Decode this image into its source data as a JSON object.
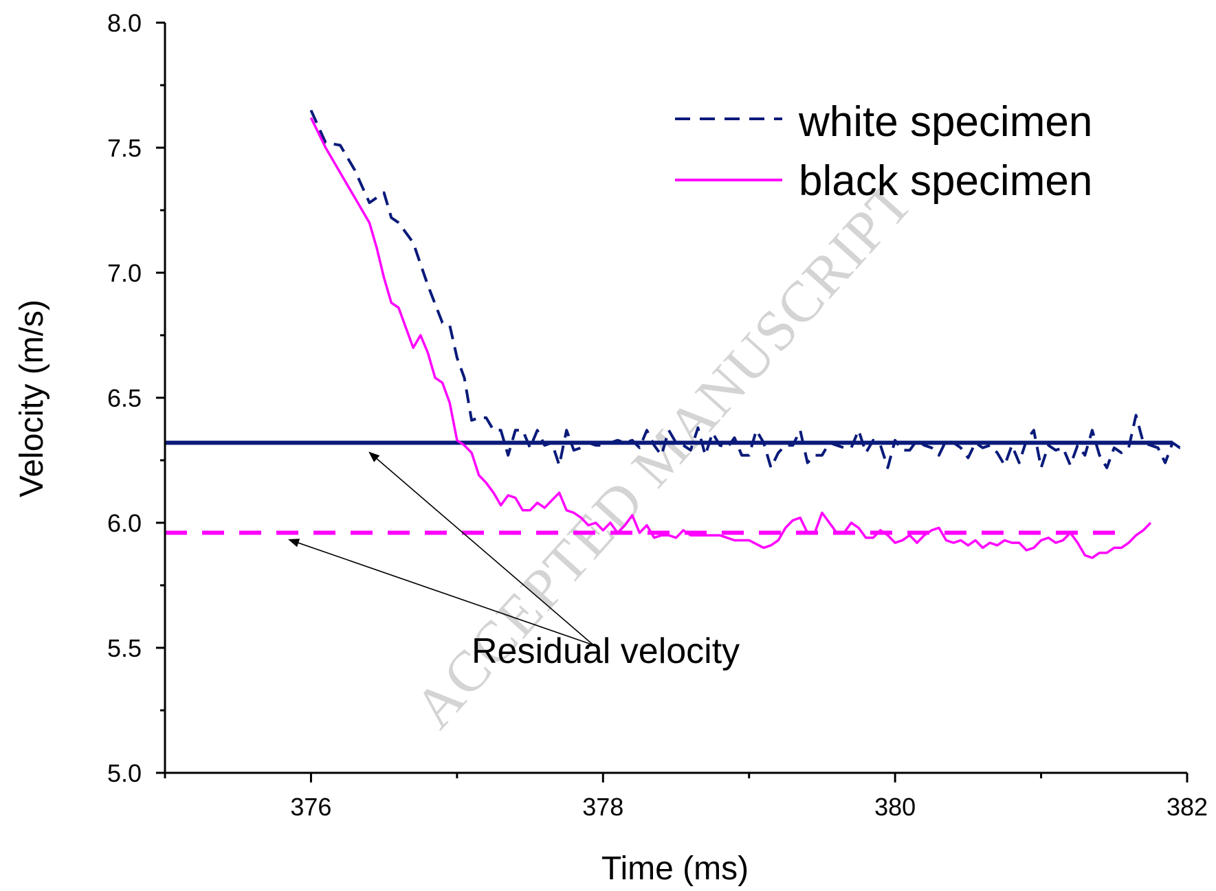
{
  "chart_data": {
    "type": "line",
    "title": "",
    "xlabel": "Time (ms)",
    "ylabel": "Velocity (m/s)",
    "xlim": [
      375,
      382
    ],
    "ylim": [
      5.0,
      8.0
    ],
    "x_ticks": [
      376,
      378,
      380,
      382
    ],
    "x_tick_labels": [
      "376",
      "378",
      "380",
      "382"
    ],
    "y_ticks": [
      5.0,
      5.5,
      6.0,
      6.5,
      7.0,
      7.5,
      8.0
    ],
    "y_tick_labels": [
      "5.0",
      "5.5",
      "6.0",
      "6.5",
      "7.0",
      "7.5",
      "8.0"
    ],
    "grid": false,
    "legend_position": "top-right",
    "series": [
      {
        "name": "white specimen",
        "color": "#0a1a7a",
        "style": "dashed",
        "x": [
          376.0,
          376.1,
          376.2,
          376.3,
          376.4,
          376.45,
          376.5,
          376.55,
          376.6,
          376.7,
          376.8,
          376.9,
          376.95,
          377.0,
          377.05,
          377.1,
          377.15,
          377.2,
          377.25,
          377.3,
          377.35,
          377.4,
          377.45,
          377.5,
          377.55,
          377.6,
          377.65,
          377.7,
          377.75,
          377.8,
          377.85,
          377.9,
          377.95,
          378.0,
          378.05,
          378.1,
          378.15,
          378.2,
          378.25,
          378.3,
          378.35,
          378.4,
          378.45,
          378.5,
          378.55,
          378.6,
          378.65,
          378.7,
          378.75,
          378.8,
          378.85,
          378.9,
          378.95,
          379.0,
          379.05,
          379.1,
          379.15,
          379.2,
          379.25,
          379.3,
          379.35,
          379.4,
          379.45,
          379.5,
          379.55,
          379.6,
          379.65,
          379.7,
          379.75,
          379.8,
          379.85,
          379.9,
          379.95,
          380.0,
          380.05,
          380.1,
          380.15,
          380.2,
          380.25,
          380.3,
          380.35,
          380.4,
          380.45,
          380.5,
          380.55,
          380.6,
          380.65,
          380.7,
          380.75,
          380.8,
          380.85,
          380.9,
          380.95,
          381.0,
          381.05,
          381.1,
          381.15,
          381.2,
          381.25,
          381.3,
          381.35,
          381.4,
          381.45,
          381.5,
          381.55,
          381.6,
          381.65,
          381.7,
          381.75,
          381.8,
          381.85,
          381.9,
          381.95,
          382.0
        ],
        "values": [
          7.65,
          7.52,
          7.51,
          7.41,
          7.28,
          7.3,
          7.32,
          7.22,
          7.2,
          7.12,
          6.95,
          6.8,
          6.79,
          6.66,
          6.58,
          6.41,
          6.42,
          6.42,
          6.37,
          6.37,
          6.27,
          6.37,
          6.37,
          6.3,
          6.37,
          6.31,
          6.32,
          6.23,
          6.37,
          6.29,
          6.3,
          6.32,
          6.31,
          6.31,
          6.32,
          6.33,
          6.32,
          6.33,
          6.3,
          6.37,
          6.31,
          6.27,
          6.37,
          6.32,
          6.31,
          6.29,
          6.38,
          6.27,
          6.36,
          6.31,
          6.3,
          6.34,
          6.27,
          6.27,
          6.37,
          6.32,
          6.22,
          6.28,
          6.31,
          6.31,
          6.37,
          6.24,
          6.27,
          6.27,
          6.32,
          6.31,
          6.3,
          6.3,
          6.37,
          6.28,
          6.33,
          6.31,
          6.22,
          6.33,
          6.29,
          6.29,
          6.33,
          6.31,
          6.3,
          6.27,
          6.33,
          6.32,
          6.3,
          6.26,
          6.32,
          6.3,
          6.31,
          6.28,
          6.23,
          6.31,
          6.24,
          6.33,
          6.37,
          6.22,
          6.31,
          6.29,
          6.3,
          6.23,
          6.31,
          6.27,
          6.37,
          6.27,
          6.22,
          6.3,
          6.28,
          6.3,
          6.43,
          6.32,
          6.31,
          6.3,
          6.24,
          6.32,
          6.3,
          6.31
        ]
      },
      {
        "name": "black specimen",
        "color": "#ff00ff",
        "style": "solid",
        "x": [
          376.0,
          376.1,
          376.2,
          376.3,
          376.4,
          376.45,
          376.5,
          376.55,
          376.6,
          376.65,
          376.7,
          376.75,
          376.8,
          376.85,
          376.9,
          376.95,
          377.0,
          377.05,
          377.1,
          377.15,
          377.2,
          377.25,
          377.3,
          377.35,
          377.4,
          377.45,
          377.5,
          377.55,
          377.6,
          377.65,
          377.7,
          377.75,
          377.8,
          377.85,
          377.9,
          377.95,
          378.0,
          378.05,
          378.1,
          378.15,
          378.2,
          378.25,
          378.3,
          378.35,
          378.4,
          378.45,
          378.5,
          378.55,
          378.6,
          378.65,
          378.7,
          378.75,
          378.8,
          378.9,
          379.0,
          379.1,
          379.15,
          379.2,
          379.25,
          379.3,
          379.35,
          379.4,
          379.45,
          379.5,
          379.55,
          379.6,
          379.65,
          379.7,
          379.75,
          379.8,
          379.85,
          379.9,
          379.95,
          380.0,
          380.05,
          380.1,
          380.15,
          380.2,
          380.25,
          380.3,
          380.35,
          380.4,
          380.45,
          380.5,
          380.55,
          380.6,
          380.65,
          380.7,
          380.75,
          380.8,
          380.85,
          380.9,
          380.95,
          381.0,
          381.05,
          381.1,
          381.15,
          381.2,
          381.25,
          381.3,
          381.35,
          381.4,
          381.45,
          381.5,
          381.55,
          381.6,
          381.65,
          381.7,
          381.75
        ],
        "values": [
          7.62,
          7.5,
          7.4,
          7.3,
          7.2,
          7.1,
          6.98,
          6.88,
          6.86,
          6.78,
          6.7,
          6.75,
          6.68,
          6.58,
          6.56,
          6.48,
          6.33,
          6.31,
          6.28,
          6.19,
          6.16,
          6.12,
          6.07,
          6.11,
          6.1,
          6.05,
          6.05,
          6.08,
          6.06,
          6.09,
          6.12,
          6.05,
          6.04,
          6.02,
          5.99,
          6.0,
          5.97,
          6.0,
          5.96,
          5.99,
          6.03,
          5.96,
          5.99,
          5.94,
          5.95,
          5.95,
          5.94,
          5.97,
          5.95,
          5.95,
          5.95,
          5.95,
          5.95,
          5.93,
          5.93,
          5.9,
          5.91,
          5.93,
          5.98,
          6.01,
          6.02,
          5.96,
          5.96,
          6.04,
          6.0,
          5.96,
          5.96,
          6.0,
          5.98,
          5.94,
          5.94,
          5.97,
          5.95,
          5.92,
          5.93,
          5.95,
          5.92,
          5.95,
          5.97,
          5.98,
          5.93,
          5.92,
          5.93,
          5.91,
          5.93,
          5.9,
          5.92,
          5.91,
          5.93,
          5.92,
          5.92,
          5.89,
          5.9,
          5.93,
          5.94,
          5.92,
          5.93,
          5.96,
          5.92,
          5.87,
          5.86,
          5.88,
          5.88,
          5.9,
          5.9,
          5.92,
          5.95,
          5.97,
          6.0
        ]
      }
    ],
    "reference_lines": [
      {
        "kind": "residual-white",
        "y": 6.32,
        "x_start": 375,
        "x_end": 381.9,
        "color": "#0a1a7a",
        "style": "solid"
      },
      {
        "kind": "residual-black",
        "y": 5.96,
        "x_start": 375,
        "x_end": 381.55,
        "color": "#ff00ff",
        "style": "dashed"
      }
    ],
    "annotation": {
      "text": "Residual velocity",
      "anchor": {
        "x": 378.0,
        "y": 5.5
      },
      "arrow_targets": [
        {
          "x": 376.4,
          "y": 6.32
        },
        {
          "x": 375.85,
          "y": 5.96
        }
      ]
    },
    "watermark": "ACCEPTED MANUSCRIPT"
  }
}
